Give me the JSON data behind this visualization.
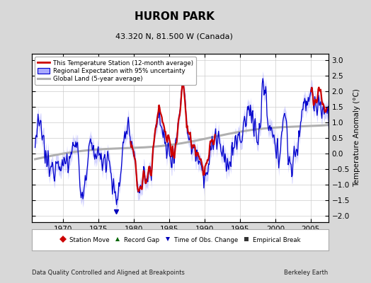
{
  "title": "HURON PARK",
  "subtitle": "43.320 N, 81.500 W (Canada)",
  "ylabel": "Temperature Anomaly (°C)",
  "xlabel_note": "Data Quality Controlled and Aligned at Breakpoints",
  "credit": "Berkeley Earth",
  "ylim": [
    -2.2,
    3.2
  ],
  "xlim": [
    1965.5,
    2007.5
  ],
  "yticks": [
    -2,
    -1.5,
    -1,
    -0.5,
    0,
    0.5,
    1,
    1.5,
    2,
    2.5,
    3
  ],
  "xticks": [
    1970,
    1975,
    1980,
    1985,
    1990,
    1995,
    2000,
    2005
  ],
  "bg_color": "#d8d8d8",
  "plot_bg_color": "#ffffff",
  "uncertainty_color": "#aaaaff",
  "uncertainty_alpha": 0.5,
  "time_obs_change_year": 1977.5,
  "time_obs_change_y": -1.85
}
